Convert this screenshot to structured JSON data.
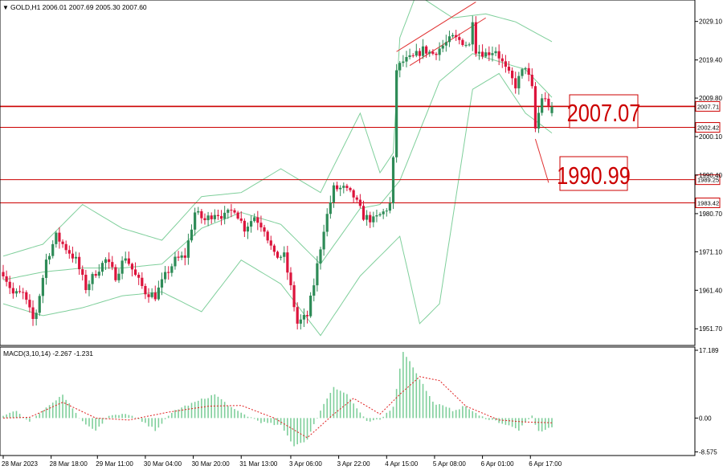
{
  "header": {
    "symbol_line": "GOLD,H1  2006.01 2007.69 2005.30 2007.60",
    "marker": "▼"
  },
  "macd_header": "MACD(3,10,14) -2.267 -1.231",
  "colors": {
    "up_candle": "#2e8b57",
    "down_candle": "#dc143c",
    "bollinger": "#7fcf9b",
    "levels": "#cc0000",
    "macd_hist": "#7fcf9b",
    "macd_signal": "#e02020",
    "grid": "#e8e8e8",
    "axis_text": "#000000"
  },
  "annotations": {
    "big_label_1": "2007.07",
    "big_label_2": "1990.99"
  },
  "chart_data": [
    {
      "type": "candlestick",
      "title": "GOLD,H1",
      "ohlc_last": {
        "open": 2006.01,
        "high": 2007.69,
        "low": 2005.3,
        "close": 2007.6
      },
      "ylim": [
        1947.5,
        2034.5
      ],
      "y_ticks": [
        {
          "value": 2029.1,
          "label": "2029.10"
        },
        {
          "value": 2019.4,
          "label": "2019.40"
        },
        {
          "value": 2009.8,
          "label": "2009.80"
        },
        {
          "value": 2000.1,
          "label": "2000.10"
        },
        {
          "value": 1990.4,
          "label": "1990.40"
        },
        {
          "value": 1980.7,
          "label": "1980.70"
        },
        {
          "value": 1971.1,
          "label": "1971.10"
        },
        {
          "value": 1961.4,
          "label": "1961.40"
        },
        {
          "value": 1951.7,
          "label": "1951.70"
        }
      ],
      "x_labels": [
        "28 Mar 2023",
        "28 Mar 18:00",
        "29 Mar 11:00",
        "30 Mar 04:00",
        "30 Mar 20:00",
        "31 Mar 13:00",
        "3 Apr 06:00",
        "3 Apr 22:00",
        "4 Apr 15:00",
        "5 Apr 08:00",
        "6 Apr 01:00",
        "6 Apr 17:00"
      ],
      "horizontal_levels": [
        {
          "value": 2007.71,
          "label": "2007.71",
          "style": "thick"
        },
        {
          "value": 2002.42,
          "label": "2002.42",
          "style": "thin"
        },
        {
          "value": 1989.25,
          "label": "1989.25",
          "style": "thin"
        },
        {
          "value": 1983.42,
          "label": "1983.42",
          "style": "thin"
        }
      ],
      "trendlines": [
        {
          "from": {
            "bar": 119,
            "value": 2021.5
          },
          "to": {
            "bar": 143,
            "value": 2034.0
          }
        },
        {
          "from": {
            "bar": 123,
            "value": 2018.0
          },
          "to": {
            "bar": 146,
            "value": 2030.0
          }
        },
        {
          "from": {
            "bar": 161,
            "value": 1999.5
          },
          "to": {
            "bar": 165,
            "value": 1988.5
          }
        }
      ],
      "anchors": [
        {
          "bar": 0,
          "value": 1966
        },
        {
          "bar": 3,
          "value": 1960.5
        },
        {
          "bar": 6,
          "value": 1960.5
        },
        {
          "bar": 9,
          "value": 1954
        },
        {
          "bar": 10,
          "value": 1956
        },
        {
          "bar": 13,
          "value": 1969
        },
        {
          "bar": 16,
          "value": 1975
        },
        {
          "bar": 19,
          "value": 1972
        },
        {
          "bar": 22,
          "value": 1969
        },
        {
          "bar": 25,
          "value": 1962
        },
        {
          "bar": 28,
          "value": 1966
        },
        {
          "bar": 31,
          "value": 1969
        },
        {
          "bar": 34,
          "value": 1965
        },
        {
          "bar": 37,
          "value": 1970
        },
        {
          "bar": 40,
          "value": 1965
        },
        {
          "bar": 43,
          "value": 1961
        },
        {
          "bar": 46,
          "value": 1960
        },
        {
          "bar": 49,
          "value": 1965
        },
        {
          "bar": 52,
          "value": 1969
        },
        {
          "bar": 55,
          "value": 1970
        },
        {
          "bar": 58,
          "value": 1981
        },
        {
          "bar": 61,
          "value": 1979
        },
        {
          "bar": 64,
          "value": 1981
        },
        {
          "bar": 67,
          "value": 1980
        },
        {
          "bar": 70,
          "value": 1982
        },
        {
          "bar": 73,
          "value": 1977
        },
        {
          "bar": 76,
          "value": 1980
        },
        {
          "bar": 79,
          "value": 1977
        },
        {
          "bar": 82,
          "value": 1970
        },
        {
          "bar": 85,
          "value": 1970
        },
        {
          "bar": 87,
          "value": 1962
        },
        {
          "bar": 89,
          "value": 1953
        },
        {
          "bar": 92,
          "value": 1955
        },
        {
          "bar": 94,
          "value": 1963
        },
        {
          "bar": 97,
          "value": 1977
        },
        {
          "bar": 100,
          "value": 1987
        },
        {
          "bar": 103,
          "value": 1987
        },
        {
          "bar": 106,
          "value": 1985
        },
        {
          "bar": 109,
          "value": 1980
        },
        {
          "bar": 112,
          "value": 1979
        },
        {
          "bar": 115,
          "value": 1981
        },
        {
          "bar": 117,
          "value": 1983
        },
        {
          "bar": 118,
          "value": 1994
        },
        {
          "bar": 119,
          "value": 2017
        },
        {
          "bar": 121,
          "value": 2019
        },
        {
          "bar": 124,
          "value": 2020
        },
        {
          "bar": 127,
          "value": 2022
        },
        {
          "bar": 130,
          "value": 2021
        },
        {
          "bar": 133,
          "value": 2023
        },
        {
          "bar": 136,
          "value": 2025
        },
        {
          "bar": 139,
          "value": 2024
        },
        {
          "bar": 141,
          "value": 2023
        },
        {
          "bar": 142,
          "value": 2030
        },
        {
          "bar": 143,
          "value": 2022
        },
        {
          "bar": 146,
          "value": 2021
        },
        {
          "bar": 149,
          "value": 2022
        },
        {
          "bar": 152,
          "value": 2017
        },
        {
          "bar": 155,
          "value": 2013
        },
        {
          "bar": 158,
          "value": 2018
        },
        {
          "bar": 160,
          "value": 2012
        },
        {
          "bar": 161,
          "value": 2002
        },
        {
          "bar": 163,
          "value": 2010
        },
        {
          "bar": 166,
          "value": 2007.6
        }
      ],
      "bollinger": {
        "upper": [
          {
            "bar": 0,
            "value": 1970
          },
          {
            "bar": 12,
            "value": 1973
          },
          {
            "bar": 24,
            "value": 1983
          },
          {
            "bar": 36,
            "value": 1977
          },
          {
            "bar": 48,
            "value": 1974
          },
          {
            "bar": 60,
            "value": 1985
          },
          {
            "bar": 72,
            "value": 1986
          },
          {
            "bar": 84,
            "value": 1992
          },
          {
            "bar": 96,
            "value": 1986
          },
          {
            "bar": 108,
            "value": 2006
          },
          {
            "bar": 114,
            "value": 1991
          },
          {
            "bar": 118,
            "value": 1996
          },
          {
            "bar": 120,
            "value": 2025
          },
          {
            "bar": 125,
            "value": 2036
          },
          {
            "bar": 136,
            "value": 2030
          },
          {
            "bar": 146,
            "value": 2031
          },
          {
            "bar": 155,
            "value": 2029
          },
          {
            "bar": 166,
            "value": 2024
          }
        ],
        "middle": [
          {
            "bar": 0,
            "value": 1964
          },
          {
            "bar": 12,
            "value": 1966
          },
          {
            "bar": 24,
            "value": 1967
          },
          {
            "bar": 36,
            "value": 1967
          },
          {
            "bar": 48,
            "value": 1968
          },
          {
            "bar": 60,
            "value": 1977
          },
          {
            "bar": 72,
            "value": 1981
          },
          {
            "bar": 84,
            "value": 1978
          },
          {
            "bar": 96,
            "value": 1968
          },
          {
            "bar": 108,
            "value": 1982
          },
          {
            "bar": 114,
            "value": 1983
          },
          {
            "bar": 120,
            "value": 1989
          },
          {
            "bar": 132,
            "value": 2014
          },
          {
            "bar": 142,
            "value": 2021
          },
          {
            "bar": 150,
            "value": 2019
          },
          {
            "bar": 158,
            "value": 2017
          },
          {
            "bar": 166,
            "value": 2010
          }
        ],
        "lower": [
          {
            "bar": 0,
            "value": 1958
          },
          {
            "bar": 12,
            "value": 1955
          },
          {
            "bar": 24,
            "value": 1957
          },
          {
            "bar": 36,
            "value": 1960
          },
          {
            "bar": 48,
            "value": 1961
          },
          {
            "bar": 60,
            "value": 1956
          },
          {
            "bar": 72,
            "value": 1969
          },
          {
            "bar": 84,
            "value": 1963
          },
          {
            "bar": 96,
            "value": 1950
          },
          {
            "bar": 108,
            "value": 1965
          },
          {
            "bar": 114,
            "value": 1970
          },
          {
            "bar": 120,
            "value": 1975
          },
          {
            "bar": 126,
            "value": 1953
          },
          {
            "bar": 132,
            "value": 1958
          },
          {
            "bar": 142,
            "value": 2012
          },
          {
            "bar": 150,
            "value": 2016
          },
          {
            "bar": 158,
            "value": 2006
          },
          {
            "bar": 166,
            "value": 2001
          }
        ]
      },
      "macd": {
        "title": "MACD(3,10,14)",
        "values": {
          "main": -2.267,
          "signal": -1.231
        },
        "ylim": [
          -9.5,
          18.0
        ],
        "y_ticks": [
          {
            "value": 17.189,
            "label": "17.189"
          },
          {
            "value": 0.0,
            "label": "0.00"
          },
          {
            "value": -8.575,
            "label": "-8.575"
          }
        ],
        "hist_anchors": [
          {
            "bar": 0,
            "value": 0.5
          },
          {
            "bar": 4,
            "value": 2
          },
          {
            "bar": 8,
            "value": -1
          },
          {
            "bar": 14,
            "value": 3.5
          },
          {
            "bar": 18,
            "value": 6
          },
          {
            "bar": 24,
            "value": -1
          },
          {
            "bar": 28,
            "value": -3
          },
          {
            "bar": 32,
            "value": 0.5
          },
          {
            "bar": 38,
            "value": 1
          },
          {
            "bar": 46,
            "value": -3
          },
          {
            "bar": 52,
            "value": 2
          },
          {
            "bar": 58,
            "value": 4
          },
          {
            "bar": 64,
            "value": 6
          },
          {
            "bar": 70,
            "value": 2
          },
          {
            "bar": 78,
            "value": -1
          },
          {
            "bar": 84,
            "value": -2
          },
          {
            "bar": 88,
            "value": -7
          },
          {
            "bar": 92,
            "value": -5.5
          },
          {
            "bar": 96,
            "value": 2
          },
          {
            "bar": 100,
            "value": 8
          },
          {
            "bar": 104,
            "value": 6
          },
          {
            "bar": 110,
            "value": -1
          },
          {
            "bar": 114,
            "value": -0.5
          },
          {
            "bar": 118,
            "value": 3
          },
          {
            "bar": 121,
            "value": 17
          },
          {
            "bar": 124,
            "value": 13
          },
          {
            "bar": 130,
            "value": 4
          },
          {
            "bar": 136,
            "value": 2
          },
          {
            "bar": 140,
            "value": 3
          },
          {
            "bar": 144,
            "value": 0.5
          },
          {
            "bar": 150,
            "value": -1
          },
          {
            "bar": 156,
            "value": -3
          },
          {
            "bar": 160,
            "value": 0.5
          },
          {
            "bar": 162,
            "value": -3.5
          },
          {
            "bar": 166,
            "value": -2.3
          }
        ],
        "signal_anchors": [
          {
            "bar": 0,
            "value": 0
          },
          {
            "bar": 8,
            "value": 0.2
          },
          {
            "bar": 18,
            "value": 4
          },
          {
            "bar": 28,
            "value": 0
          },
          {
            "bar": 38,
            "value": -0.5
          },
          {
            "bar": 50,
            "value": 1.5
          },
          {
            "bar": 62,
            "value": 3
          },
          {
            "bar": 72,
            "value": 3.2
          },
          {
            "bar": 82,
            "value": 0
          },
          {
            "bar": 92,
            "value": -5
          },
          {
            "bar": 100,
            "value": 1
          },
          {
            "bar": 106,
            "value": 5
          },
          {
            "bar": 114,
            "value": 1
          },
          {
            "bar": 120,
            "value": 6
          },
          {
            "bar": 126,
            "value": 10.5
          },
          {
            "bar": 132,
            "value": 9.5
          },
          {
            "bar": 140,
            "value": 3
          },
          {
            "bar": 150,
            "value": -0.5
          },
          {
            "bar": 158,
            "value": -1
          },
          {
            "bar": 166,
            "value": -1.2
          }
        ]
      }
    }
  ]
}
